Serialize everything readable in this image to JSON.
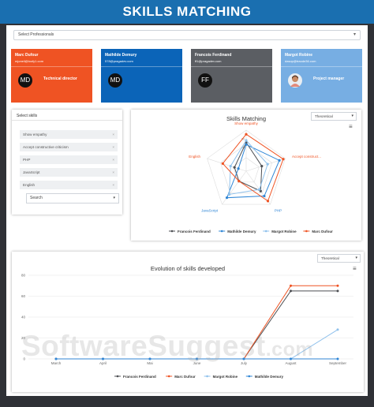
{
  "header": {
    "title": "SKILLS MATCHING"
  },
  "professional_select": {
    "value": "Select Professionals"
  },
  "cards": [
    {
      "name": "Marc Dufour",
      "email": "mjoneil@loofy1.com",
      "role": "Technical director",
      "initials": "MD",
      "color": "#ef5323"
    },
    {
      "name": "Mathilde Demury",
      "email": "578@pragadev.com",
      "role": "",
      "initials": "MD",
      "color": "#0b64b8"
    },
    {
      "name": "Francois Ferdinand",
      "email": "ff1@pragadev.com",
      "role": "",
      "initials": "FF",
      "color": "#5b5e63"
    },
    {
      "name": "Margot Robine",
      "email": "dasop@traode36.com",
      "role": "Project manager",
      "initials": "",
      "color": "#77aee3"
    }
  ],
  "skills_panel": {
    "title": "Select skills",
    "skills": [
      "Show empathy",
      "Accept constructive criticism",
      "PHP",
      "JavaScript",
      "English"
    ],
    "remove_symbol": "×",
    "search_label": "Search"
  },
  "radar": {
    "dropdown": "Theoretical",
    "menu_icon": "≡",
    "chart_data": {
      "type": "radar",
      "title": "Skills Matching",
      "axes": [
        "Show empathy",
        "Accept construct...",
        "PHP",
        "JavaScript",
        "English"
      ],
      "axis_colors": [
        "#ef5323",
        "#ef5323",
        "#2f86d6",
        "#2f86d6",
        "#ef5323"
      ],
      "max": 100,
      "ring_labels": [
        "80",
        "60"
      ],
      "series": [
        {
          "name": "Francois Ferdinand",
          "color": "#4d4f53",
          "values": [
            70,
            40,
            60,
            30,
            30
          ]
        },
        {
          "name": "Mathilde Demury",
          "color": "#2f86d6",
          "values": [
            65,
            85,
            75,
            80,
            20
          ]
        },
        {
          "name": "Margot Robine",
          "color": "#8fc1ec",
          "values": [
            75,
            55,
            55,
            70,
            40
          ]
        },
        {
          "name": "Marc Dufour",
          "color": "#ef5323",
          "values": [
            90,
            95,
            90,
            30,
            60
          ]
        }
      ]
    }
  },
  "line": {
    "dropdown": "Theoretical",
    "menu_icon": "≡",
    "chart_data": {
      "type": "line",
      "title": "Evolution of skills developed",
      "categories": [
        "March",
        "April",
        "Mai",
        "June",
        "July",
        "August",
        "September"
      ],
      "ylim": [
        0,
        80
      ],
      "yticks": [
        "0",
        "20",
        "40",
        "60",
        "80"
      ],
      "series": [
        {
          "name": "Francois Ferdinand",
          "color": "#4d4f53",
          "values": [
            0,
            0,
            0,
            0,
            0,
            65,
            65
          ]
        },
        {
          "name": "Marc Dufour",
          "color": "#ef5323",
          "values": [
            0,
            0,
            0,
            0,
            0,
            70,
            70
          ]
        },
        {
          "name": "Margot Robine",
          "color": "#8fc1ec",
          "values": [
            0,
            0,
            0,
            0,
            0,
            0,
            28
          ]
        },
        {
          "name": "Mathilde Demury",
          "color": "#2f86d6",
          "values": [
            0,
            0,
            0,
            0,
            0,
            0,
            0
          ]
        }
      ]
    }
  },
  "watermark": {
    "main": "SoftwareSuggest",
    "suffix": ".com"
  }
}
